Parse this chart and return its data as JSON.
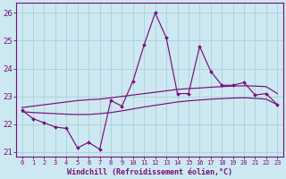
{
  "xlabel": "Windchill (Refroidissement éolien,°C)",
  "x": [
    0,
    1,
    2,
    3,
    4,
    5,
    6,
    7,
    8,
    9,
    10,
    11,
    12,
    13,
    14,
    15,
    16,
    17,
    18,
    19,
    20,
    21,
    22,
    23
  ],
  "line_jagged": [
    22.5,
    22.2,
    22.05,
    21.9,
    21.85,
    21.15,
    21.35,
    21.1,
    22.85,
    22.65,
    23.55,
    24.85,
    26.0,
    25.1,
    23.1,
    23.1,
    24.8,
    23.9,
    23.4,
    23.4,
    23.5,
    23.05,
    23.1,
    22.7
  ],
  "line_upper": [
    22.6,
    22.65,
    22.7,
    22.75,
    22.8,
    22.85,
    22.88,
    22.9,
    22.95,
    23.0,
    23.05,
    23.1,
    23.15,
    23.2,
    23.25,
    23.28,
    23.3,
    23.33,
    23.35,
    23.37,
    23.38,
    23.37,
    23.35,
    23.1
  ],
  "line_lower": [
    22.45,
    22.42,
    22.4,
    22.38,
    22.36,
    22.35,
    22.35,
    22.38,
    22.42,
    22.48,
    22.55,
    22.62,
    22.68,
    22.74,
    22.8,
    22.84,
    22.87,
    22.9,
    22.92,
    22.94,
    22.95,
    22.93,
    22.9,
    22.7
  ],
  "color": "#7b0d7b",
  "bg_color": "#cce8f0",
  "grid_color": "#aacfdd",
  "ylim": [
    20.85,
    26.35
  ],
  "yticks": [
    21,
    22,
    23,
    24,
    25,
    26
  ],
  "xticks": [
    0,
    1,
    2,
    3,
    4,
    5,
    6,
    7,
    8,
    9,
    10,
    11,
    12,
    13,
    14,
    15,
    16,
    17,
    18,
    19,
    20,
    21,
    22,
    23
  ]
}
